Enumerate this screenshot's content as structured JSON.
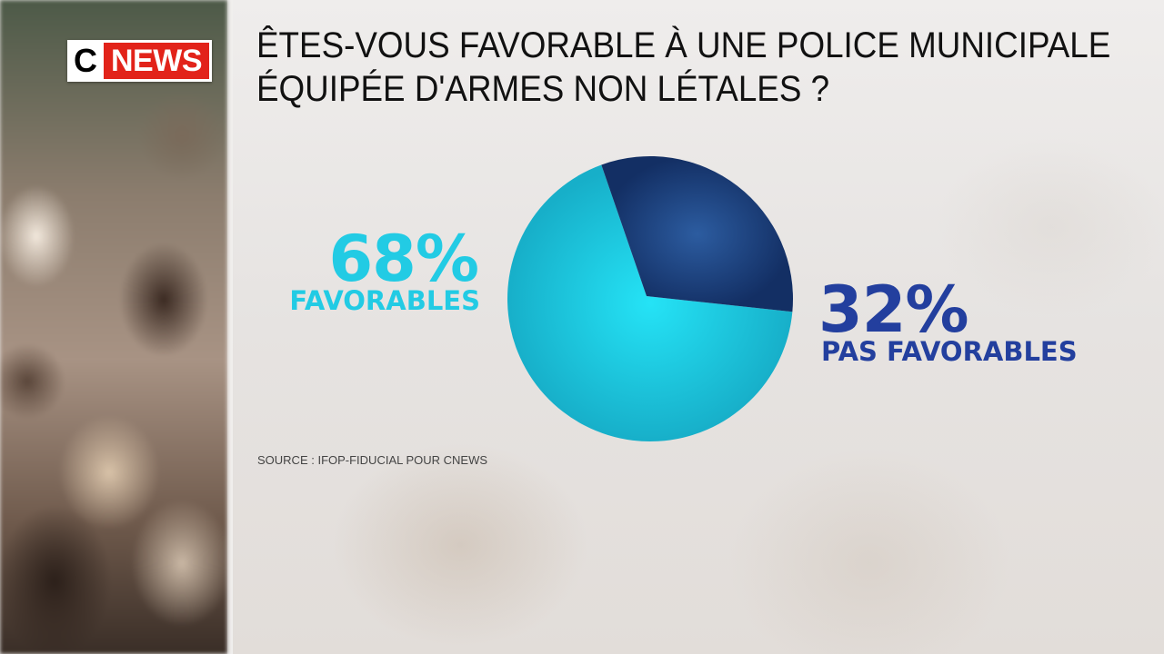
{
  "channel": {
    "logo_c": "C",
    "logo_news": "NEWS",
    "logo_red": "#e2231a"
  },
  "chart_data": {
    "type": "pie",
    "title": "ÊTES-VOUS FAVORABLE À UNE POLICE MUNICIPALE ÉQUIPÉE D'ARMES NON LÉTALES ?",
    "title_lines": [
      "ÊTES-VOUS FAVORABLE À UNE POLICE MUNICIPALE",
      "ÉQUIPÉE D'ARMES NON LÉTALES ?"
    ],
    "slices": [
      {
        "name": "FAVORABLES",
        "value": 68,
        "value_label": "68%",
        "color": "#22cbe4"
      },
      {
        "name": "PAS FAVORABLES",
        "value": 32,
        "value_label": "32%",
        "color": "#1c3d7a"
      }
    ],
    "source": "SOURCE : IFOP-FIDUCIAL POUR CNEWS"
  }
}
